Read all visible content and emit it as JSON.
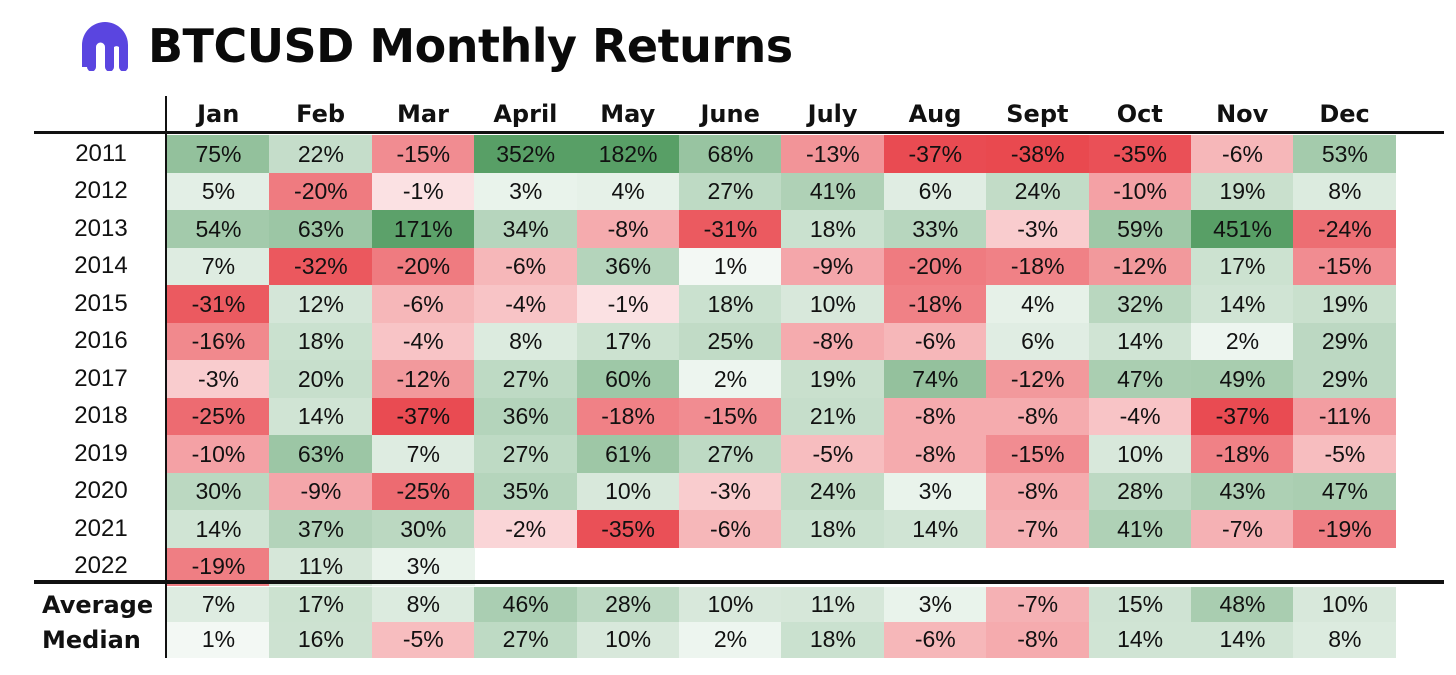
{
  "header": {
    "title": "BTCUSD Monthly Returns",
    "logo_icon": "kraken-logo-icon",
    "logo_color": "#5a45e0"
  },
  "colors": {
    "positive_max": "#4f9a5e",
    "negative_max": "#e8434a",
    "neutral": "#ffffff"
  },
  "chart_data": {
    "type": "heatmap",
    "title": "BTCUSD Monthly Returns",
    "columns": [
      "Jan",
      "Feb",
      "Mar",
      "April",
      "May",
      "June",
      "July",
      "Aug",
      "Sept",
      "Oct",
      "Nov",
      "Dec"
    ],
    "rows": [
      {
        "label": "2011",
        "cells": [
          "75%",
          "22%",
          "-15%",
          "352%",
          "182%",
          "68%",
          "-13%",
          "-37%",
          "-38%",
          "-35%",
          "-6%",
          "53%"
        ]
      },
      {
        "label": "2012",
        "cells": [
          "5%",
          "-20%",
          "-1%",
          "3%",
          "4%",
          "27%",
          "41%",
          "6%",
          "24%",
          "-10%",
          "19%",
          "8%"
        ]
      },
      {
        "label": "2013",
        "cells": [
          "54%",
          "63%",
          "171%",
          "34%",
          "-8%",
          "-31%",
          "18%",
          "33%",
          "-3%",
          "59%",
          "451%",
          "-24%"
        ]
      },
      {
        "label": "2014",
        "cells": [
          "7%",
          "-32%",
          "-20%",
          "-6%",
          "36%",
          "1%",
          "-9%",
          "-20%",
          "-18%",
          "-12%",
          "17%",
          "-15%"
        ]
      },
      {
        "label": "2015",
        "cells": [
          "-31%",
          "12%",
          "-6%",
          "-4%",
          "-1%",
          "18%",
          "10%",
          "-18%",
          "4%",
          "32%",
          "14%",
          "19%"
        ]
      },
      {
        "label": "2016",
        "cells": [
          "-16%",
          "18%",
          "-4%",
          "8%",
          "17%",
          "25%",
          "-8%",
          "-6%",
          "6%",
          "14%",
          "2%",
          "29%"
        ]
      },
      {
        "label": "2017",
        "cells": [
          "-3%",
          "20%",
          "-12%",
          "27%",
          "60%",
          "2%",
          "19%",
          "74%",
          "-12%",
          "47%",
          "49%",
          "29%"
        ]
      },
      {
        "label": "2018",
        "cells": [
          "-25%",
          "14%",
          "-37%",
          "36%",
          "-18%",
          "-15%",
          "21%",
          "-8%",
          "-8%",
          "-4%",
          "-37%",
          "-11%"
        ]
      },
      {
        "label": "2019",
        "cells": [
          "-10%",
          "63%",
          "7%",
          "27%",
          "61%",
          "27%",
          "-5%",
          "-8%",
          "-15%",
          "10%",
          "-18%",
          "-5%"
        ]
      },
      {
        "label": "2020",
        "cells": [
          "30%",
          "-9%",
          "-25%",
          "35%",
          "10%",
          "-3%",
          "24%",
          "3%",
          "-8%",
          "28%",
          "43%",
          "47%"
        ]
      },
      {
        "label": "2021",
        "cells": [
          "14%",
          "37%",
          "30%",
          "-2%",
          "-35%",
          "-6%",
          "18%",
          "14%",
          "-7%",
          "41%",
          "-7%",
          "-19%"
        ]
      },
      {
        "label": "2022",
        "cells": [
          "-19%",
          "11%",
          "3%",
          "",
          "",
          "",
          "",
          "",
          "",
          "",
          "",
          ""
        ]
      }
    ],
    "stats": [
      {
        "label": "Average",
        "cells": [
          "7%",
          "17%",
          "8%",
          "46%",
          "28%",
          "10%",
          "11%",
          "3%",
          "-7%",
          "15%",
          "48%",
          "10%"
        ]
      },
      {
        "label": "Median",
        "cells": [
          "1%",
          "16%",
          "-5%",
          "27%",
          "10%",
          "2%",
          "18%",
          "-6%",
          "-8%",
          "14%",
          "14%",
          "8%"
        ]
      }
    ]
  }
}
